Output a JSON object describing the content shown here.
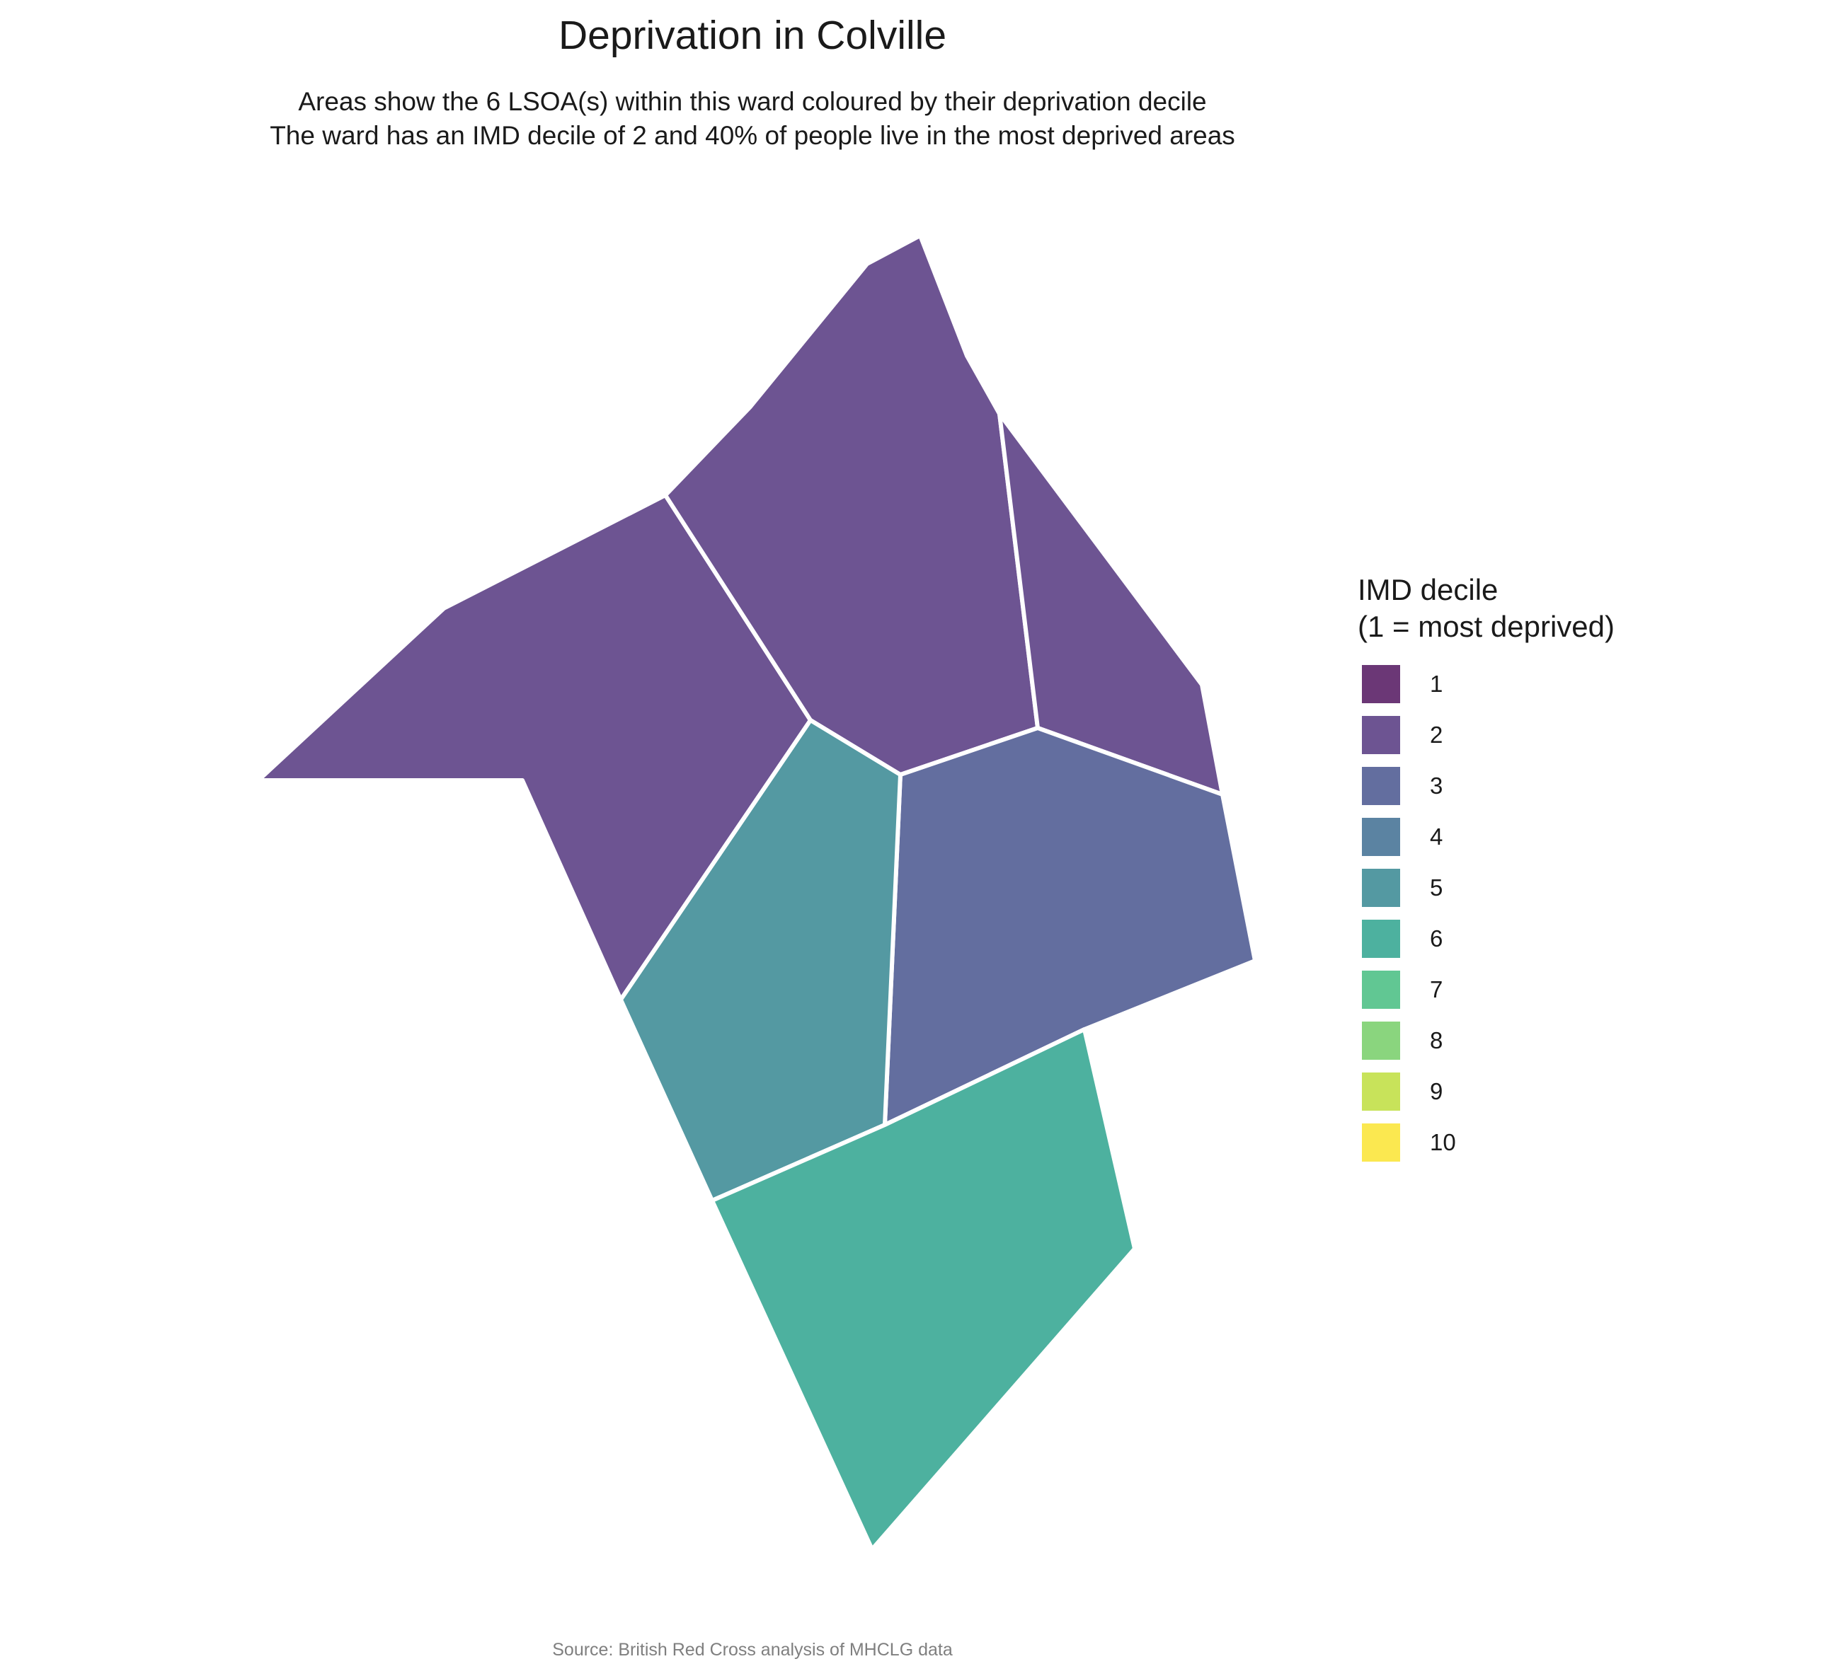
{
  "title": "Deprivation in Colville",
  "subtitle_lines": [
    "Areas show the 6 LSOA(s) within this ward coloured by their deprivation decile",
    "The ward has an IMD decile of 2 and 40% of people live in the most deprived areas"
  ],
  "legend": {
    "title_lines": [
      "IMD decile",
      "(1 = most deprived)"
    ],
    "items": [
      {
        "label": "1",
        "color": "#6b3776"
      },
      {
        "label": "2",
        "color": "#6d5492"
      },
      {
        "label": "3",
        "color": "#636e9f"
      },
      {
        "label": "4",
        "color": "#5b83a2"
      },
      {
        "label": "5",
        "color": "#5499a2"
      },
      {
        "label": "6",
        "color": "#4db19f"
      },
      {
        "label": "7",
        "color": "#61c793"
      },
      {
        "label": "8",
        "color": "#8ad57e"
      },
      {
        "label": "9",
        "color": "#c8e35a"
      },
      {
        "label": "10",
        "color": "#fbe850"
      }
    ]
  },
  "areas": [
    {
      "id": "lsoa-west",
      "decile": 2
    },
    {
      "id": "lsoa-north-central",
      "decile": 2
    },
    {
      "id": "lsoa-north-east",
      "decile": 2
    },
    {
      "id": "lsoa-east",
      "decile": 3
    },
    {
      "id": "lsoa-central",
      "decile": 5
    },
    {
      "id": "lsoa-south",
      "decile": 6
    }
  ],
  "source": "Source: British Red Cross analysis of MHCLG data"
}
